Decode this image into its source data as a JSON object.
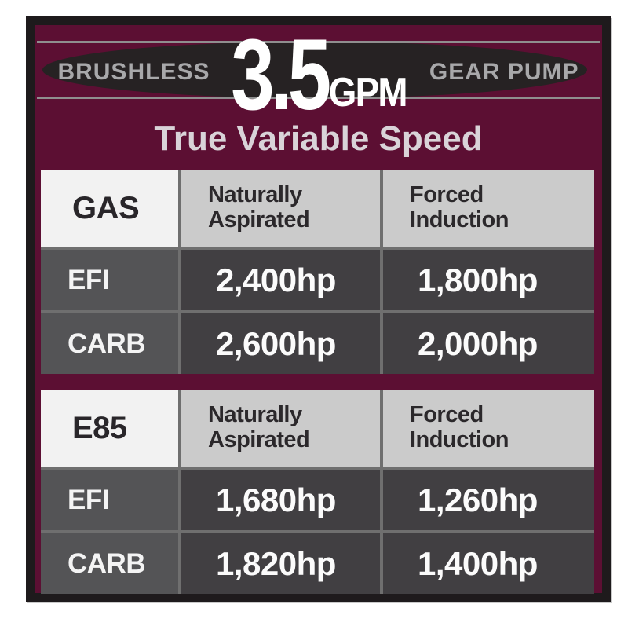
{
  "header": {
    "left_label": "BRUSHLESS",
    "flow_value": "3.5",
    "flow_unit": "GPM",
    "right_label": "GEAR PUMP",
    "subtitle": "True Variable Speed"
  },
  "tables": [
    {
      "fuel": "GAS",
      "columns": [
        "Naturally\nAspirated",
        "Forced\nInduction"
      ],
      "rows": [
        {
          "label": "EFI",
          "values": [
            "2,400hp",
            "1,800hp"
          ]
        },
        {
          "label": "CARB",
          "values": [
            "2,600hp",
            "2,000hp"
          ]
        }
      ]
    },
    {
      "fuel": "E85",
      "columns": [
        "Naturally\nAspirated",
        "Forced\nInduction"
      ],
      "rows": [
        {
          "label": "EFI",
          "values": [
            "1,680hp",
            "1,260hp"
          ]
        },
        {
          "label": "CARB",
          "values": [
            "1,820hp",
            "1,400hp"
          ]
        }
      ]
    }
  ],
  "colors": {
    "panel_background": "#5c0f33",
    "panel_border": "#1e1a1c",
    "ellipse": "#262223",
    "rule_line": "#8f8f8f",
    "side_label_text": "#a8a8aa",
    "flow_text": "#ffffff",
    "subtitle_text": "#d9d3d8",
    "fuel_cell_bg": "#f2f2f2",
    "col_header_bg": "#cbcbcb",
    "row_label_bg": "#545456",
    "value_cell_bg": "#413f42",
    "dark_text": "#2b282b",
    "light_text": "#fbfbfb"
  }
}
